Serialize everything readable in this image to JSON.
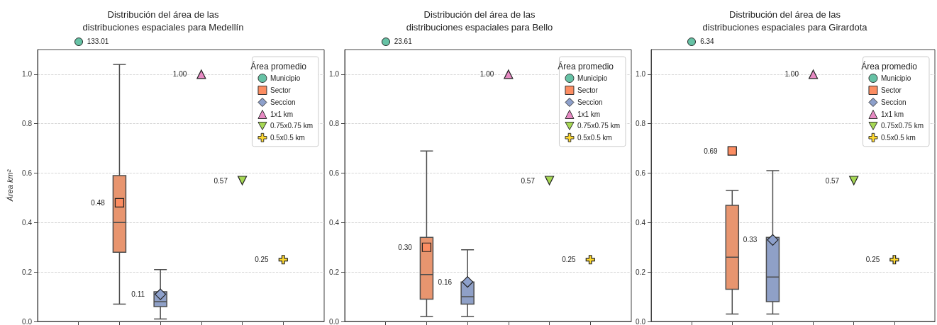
{
  "chart_data": [
    {
      "type": "scatter",
      "title": "Distribución del área de las\ndistribuciones espaciales para Medellín",
      "ylabel": "Área km²",
      "legend_title": "Área promedio",
      "legend": "top right",
      "grid": "y",
      "tick_labels": "y",
      "categories": [
        null,
        null,
        null,
        null,
        null,
        null
      ],
      "ylim": [
        0,
        1.1
      ],
      "yticks": [
        {
          "value": 0,
          "label": "0.0"
        },
        {
          "value": 0.2,
          "label": "0.2"
        },
        {
          "value": 0.4,
          "label": "0.4"
        },
        {
          "value": 0.6,
          "label": "0.6"
        },
        {
          "value": 0.8,
          "label": "0.8"
        },
        {
          "value": 1.0,
          "label": "1.0"
        }
      ],
      "annotations": [
        "133.01"
      ],
      "series": [
        {
          "type": "box",
          "colors": [
            null,
            "#e8956f",
            "#8fa0c7",
            null,
            null,
            null
          ],
          "boxes": [
            null,
            {
              "low": 0.07,
              "q1": 0.28,
              "median": 0.4,
              "q3": 0.59,
              "high": 1.04
            },
            {
              "low": 0.01,
              "q1": 0.06,
              "median": 0.08,
              "q3": 0.12,
              "high": 0.21
            },
            null,
            null,
            null
          ]
        },
        {
          "name": "Municipio",
          "marker": "circle",
          "color": "#66c2a5",
          "values": [
            null,
            null,
            null,
            null,
            null,
            null
          ]
        },
        {
          "name": "Sector",
          "marker": "square",
          "color": "#fc8d62",
          "values": [
            null,
            0.48,
            null,
            null,
            null,
            null
          ],
          "value_labels": [
            null,
            "0.48",
            null,
            null,
            null,
            null
          ]
        },
        {
          "name": "Seccion",
          "marker": "diamond",
          "color": "#8da0cb",
          "values": [
            null,
            null,
            0.11,
            null,
            null,
            null
          ],
          "value_labels": [
            null,
            null,
            "0.11",
            null,
            null,
            null
          ]
        },
        {
          "name": "1x1 km",
          "marker": "triangle",
          "color": "#e78ac3",
          "values": [
            null,
            null,
            null,
            1.0,
            null,
            null
          ],
          "value_labels": [
            null,
            null,
            null,
            "1.00",
            null,
            null
          ]
        },
        {
          "name": "0.75x0.75 km",
          "marker": "triangle-down",
          "color": "#a6d854",
          "values": [
            null,
            null,
            null,
            null,
            0.57,
            null
          ],
          "value_labels": [
            null,
            null,
            null,
            null,
            "0.57",
            null
          ]
        },
        {
          "name": "0.5x0.5 km",
          "marker": "cross",
          "color": "#ffd92f",
          "values": [
            null,
            null,
            null,
            null,
            null,
            0.25
          ],
          "value_labels": [
            null,
            null,
            null,
            null,
            null,
            "0.25"
          ]
        }
      ]
    },
    {
      "type": "scatter",
      "title": "Distribución del área de las\ndistribuciones espaciales para Bello",
      "legend_title": "Área promedio",
      "legend": "top right",
      "grid": "y",
      "tick_labels": "y",
      "categories": [
        null,
        null,
        null,
        null,
        null,
        null
      ],
      "ylim": [
        0,
        1.1
      ],
      "yticks": [
        {
          "value": 0,
          "label": "0.0"
        },
        {
          "value": 0.2,
          "label": "0.2"
        },
        {
          "value": 0.4,
          "label": "0.4"
        },
        {
          "value": 0.6,
          "label": "0.6"
        },
        {
          "value": 0.8,
          "label": "0.8"
        },
        {
          "value": 1.0,
          "label": "1.0"
        }
      ],
      "annotations": [
        "23.61"
      ],
      "series": [
        {
          "type": "box",
          "colors": [
            null,
            "#e8956f",
            "#8fa0c7",
            null,
            null,
            null
          ],
          "boxes": [
            null,
            {
              "low": 0.02,
              "q1": 0.09,
              "median": 0.19,
              "q3": 0.34,
              "high": 0.69
            },
            {
              "low": 0.02,
              "q1": 0.07,
              "median": 0.1,
              "q3": 0.16,
              "high": 0.29
            },
            null,
            null,
            null
          ]
        },
        {
          "name": "Municipio",
          "marker": "circle",
          "color": "#66c2a5",
          "values": [
            null,
            null,
            null,
            null,
            null,
            null
          ]
        },
        {
          "name": "Sector",
          "marker": "square",
          "color": "#fc8d62",
          "values": [
            null,
            0.3,
            null,
            null,
            null,
            null
          ],
          "value_labels": [
            null,
            "0.30",
            null,
            null,
            null,
            null
          ]
        },
        {
          "name": "Seccion",
          "marker": "diamond",
          "color": "#8da0cb",
          "values": [
            null,
            null,
            0.16,
            null,
            null,
            null
          ],
          "value_labels": [
            null,
            null,
            "0.16",
            null,
            null,
            null
          ]
        },
        {
          "name": "1x1 km",
          "marker": "triangle",
          "color": "#e78ac3",
          "values": [
            null,
            null,
            null,
            1.0,
            null,
            null
          ],
          "value_labels": [
            null,
            null,
            null,
            "1.00",
            null,
            null
          ]
        },
        {
          "name": "0.75x0.75 km",
          "marker": "triangle-down",
          "color": "#a6d854",
          "values": [
            null,
            null,
            null,
            null,
            0.57,
            null
          ],
          "value_labels": [
            null,
            null,
            null,
            null,
            "0.57",
            null
          ]
        },
        {
          "name": "0.5x0.5 km",
          "marker": "cross",
          "color": "#ffd92f",
          "values": [
            null,
            null,
            null,
            null,
            null,
            0.25
          ],
          "value_labels": [
            null,
            null,
            null,
            null,
            null,
            "0.25"
          ]
        }
      ]
    },
    {
      "type": "scatter",
      "title": "Distribución del área de las\ndistribuciones espaciales para Girardota",
      "legend_title": "Área promedio",
      "legend": "top right",
      "grid": "y",
      "tick_labels": "y",
      "categories": [
        null,
        null,
        null,
        null,
        null,
        null
      ],
      "ylim": [
        0,
        1.1
      ],
      "yticks": [
        {
          "value": 0,
          "label": "0.0"
        },
        {
          "value": 0.2,
          "label": "0.2"
        },
        {
          "value": 0.4,
          "label": "0.4"
        },
        {
          "value": 0.6,
          "label": "0.6"
        },
        {
          "value": 0.8,
          "label": "0.8"
        },
        {
          "value": 1.0,
          "label": "1.0"
        }
      ],
      "annotations": [
        "6.34"
      ],
      "series": [
        {
          "type": "box",
          "colors": [
            null,
            "#e8956f",
            "#8fa0c7",
            null,
            null,
            null
          ],
          "boxes": [
            null,
            {
              "low": 0.03,
              "q1": 0.13,
              "median": 0.26,
              "q3": 0.47,
              "high": 0.53
            },
            {
              "low": 0.03,
              "q1": 0.08,
              "median": 0.18,
              "q3": 0.34,
              "high": 0.61
            },
            null,
            null,
            null
          ]
        },
        {
          "name": "Municipio",
          "marker": "circle",
          "color": "#66c2a5",
          "values": [
            null,
            null,
            null,
            null,
            null,
            null
          ]
        },
        {
          "name": "Sector",
          "marker": "square",
          "color": "#fc8d62",
          "values": [
            null,
            0.69,
            null,
            null,
            null,
            null
          ],
          "value_labels": [
            null,
            "0.69",
            null,
            null,
            null,
            null
          ]
        },
        {
          "name": "Seccion",
          "marker": "diamond",
          "color": "#8da0cb",
          "values": [
            null,
            null,
            0.33,
            null,
            null,
            null
          ],
          "value_labels": [
            null,
            null,
            "0.33",
            null,
            null,
            null
          ]
        },
        {
          "name": "1x1 km",
          "marker": "triangle",
          "color": "#e78ac3",
          "values": [
            null,
            null,
            null,
            1.0,
            null,
            null
          ],
          "value_labels": [
            null,
            null,
            null,
            "1.00",
            null,
            null
          ]
        },
        {
          "name": "0.75x0.75 km",
          "marker": "triangle-down",
          "color": "#a6d854",
          "values": [
            null,
            null,
            null,
            null,
            0.57,
            null
          ],
          "value_labels": [
            null,
            null,
            null,
            null,
            "0.57",
            null
          ]
        },
        {
          "name": "0.5x0.5 km",
          "marker": "cross",
          "color": "#ffd92f",
          "values": [
            null,
            null,
            null,
            null,
            null,
            0.25
          ],
          "value_labels": [
            null,
            null,
            null,
            null,
            null,
            "0.25"
          ]
        }
      ]
    }
  ]
}
